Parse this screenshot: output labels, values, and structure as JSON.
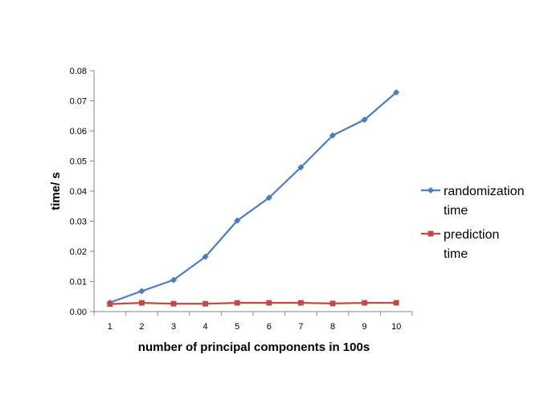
{
  "chart_data": {
    "type": "line",
    "title": "",
    "xlabel": "number of principal components in 100s",
    "ylabel": "time/ s",
    "categories": [
      "1",
      "2",
      "3",
      "4",
      "5",
      "6",
      "7",
      "8",
      "9",
      "10"
    ],
    "y_ticks": [
      "0.00",
      "0.01",
      "0.02",
      "0.03",
      "0.04",
      "0.05",
      "0.06",
      "0.07",
      "0.08"
    ],
    "ylim": [
      0,
      0.08
    ],
    "grid": false,
    "legend_position": "right",
    "series": [
      {
        "name_lines": [
          "randomization",
          "time"
        ],
        "color": "#4a7ebb",
        "marker": "diamond",
        "values": [
          0.003,
          0.0068,
          0.0105,
          0.0182,
          0.0302,
          0.0378,
          0.0479,
          0.0585,
          0.0637,
          0.0728
        ]
      },
      {
        "name_lines": [
          "prediction",
          "time"
        ],
        "color": "#be4b48",
        "marker": "square",
        "values": [
          0.0025,
          0.0029,
          0.0026,
          0.0026,
          0.0029,
          0.0029,
          0.0029,
          0.0027,
          0.0029,
          0.0029
        ]
      }
    ]
  }
}
